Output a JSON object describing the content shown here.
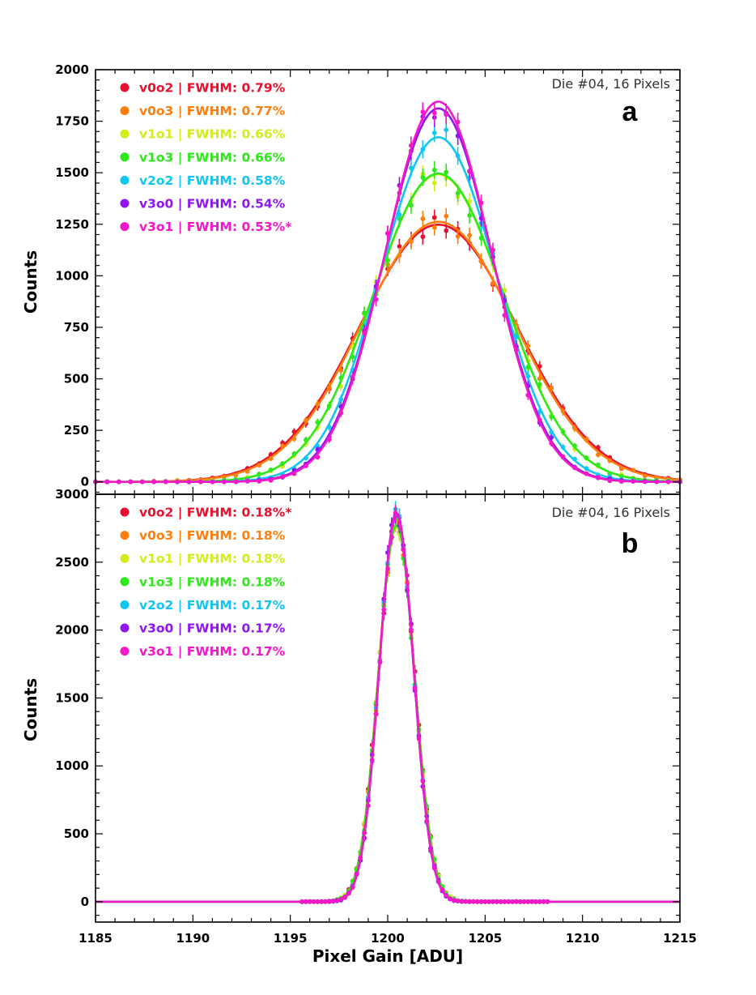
{
  "chart_data": [
    {
      "type": "scatter",
      "panel_letter": "a",
      "annotation": "Die #04, 16 Pixels",
      "xlabel": "",
      "ylabel": "Counts",
      "xlim": [
        1185,
        1215
      ],
      "ylim": [
        -60,
        2000
      ],
      "yticks": [
        "0",
        "250",
        "500",
        "750",
        "1000",
        "1250",
        "1500",
        "1750",
        "2000"
      ],
      "ytick_values": [
        0,
        250,
        500,
        750,
        1000,
        1250,
        1500,
        1750,
        2000
      ],
      "x_bin_start": 1185,
      "x_bin_end": 1215,
      "x_bin_step": 0.6,
      "legend_position": "top-left",
      "series": [
        {
          "name": "v0o2",
          "label": "v0o2 | FWHM: 0.79%",
          "color": "#e8102e",
          "peak": 1248,
          "mu": 1202.6,
          "sigma": 4.03
        },
        {
          "name": "v0o3",
          "label": "v0o3 | FWHM: 0.77%",
          "color": "#ff7f0e",
          "peak": 1262,
          "mu": 1202.6,
          "sigma": 3.95
        },
        {
          "name": "v1o1",
          "label": "v1o1 | FWHM: 0.66%",
          "color": "#d4ec1c",
          "peak": 1492,
          "mu": 1202.6,
          "sigma": 3.35
        },
        {
          "name": "v1o3",
          "label": "v1o3 | FWHM: 0.66%",
          "color": "#2ee81a",
          "peak": 1496,
          "mu": 1202.6,
          "sigma": 3.35
        },
        {
          "name": "v2o2",
          "label": "v2o2 | FWHM: 0.58%",
          "color": "#12c6f2",
          "peak": 1672,
          "mu": 1202.6,
          "sigma": 2.97
        },
        {
          "name": "v3o0",
          "label": "v3o0 | FWHM: 0.54%",
          "color": "#8f16ef",
          "peak": 1812,
          "mu": 1202.6,
          "sigma": 2.76
        },
        {
          "name": "v3o1",
          "label": "v3o1 | FWHM: 0.53%*",
          "color": "#f418c8",
          "peak": 1845,
          "mu": 1202.6,
          "sigma": 2.71
        }
      ]
    },
    {
      "type": "scatter",
      "panel_letter": "b",
      "annotation": "Die #04, 16 Pixels",
      "xlabel": "Pixel Gain [ADU]",
      "ylabel": "Counts",
      "xlim": [
        1185,
        1215
      ],
      "ylim": [
        -150,
        3000
      ],
      "xticks": [
        "1185",
        "1190",
        "1195",
        "1200",
        "1205",
        "1210",
        "1215"
      ],
      "xtick_values": [
        1185,
        1190,
        1195,
        1200,
        1205,
        1210,
        1215
      ],
      "yticks": [
        "0",
        "500",
        "1000",
        "1500",
        "2000",
        "2500",
        "3000"
      ],
      "ytick_values": [
        0,
        500,
        1000,
        1500,
        2000,
        2500,
        3000
      ],
      "x_bin_start": 1195.6,
      "x_bin_end": 1208.2,
      "x_bin_step": 0.2,
      "legend_position": "top-left",
      "series": [
        {
          "name": "v0o2",
          "label": "v0o2 | FWHM: 0.18%*",
          "color": "#e8102e",
          "peak": 2800,
          "mu": 1200.45,
          "sigma": 0.92
        },
        {
          "name": "v0o3",
          "label": "v0o3 | FWHM: 0.18%",
          "color": "#ff7f0e",
          "peak": 2790,
          "mu": 1200.45,
          "sigma": 0.92
        },
        {
          "name": "v1o1",
          "label": "v1o1 | FWHM: 0.18%",
          "color": "#d4ec1c",
          "peak": 2760,
          "mu": 1200.45,
          "sigma": 0.92
        },
        {
          "name": "v1o3",
          "label": "v1o3 | FWHM: 0.18%",
          "color": "#2ee81a",
          "peak": 2770,
          "mu": 1200.45,
          "sigma": 0.92
        },
        {
          "name": "v2o2",
          "label": "v2o2 | FWHM: 0.17%",
          "color": "#12c6f2",
          "peak": 2840,
          "mu": 1200.45,
          "sigma": 0.88
        },
        {
          "name": "v3o0",
          "label": "v3o0 | FWHM: 0.17%",
          "color": "#8f16ef",
          "peak": 2860,
          "mu": 1200.45,
          "sigma": 0.88
        },
        {
          "name": "v3o1",
          "label": "v3o1 | FWHM: 0.17%",
          "color": "#f418c8",
          "peak": 2850,
          "mu": 1200.45,
          "sigma": 0.88
        }
      ]
    }
  ]
}
